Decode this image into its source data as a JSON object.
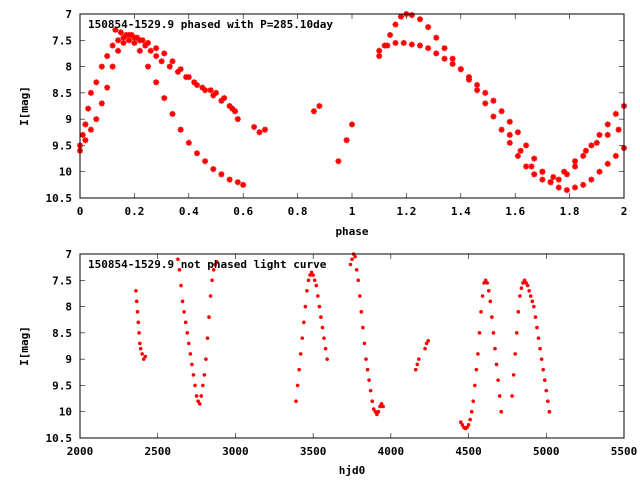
{
  "chart_data": [
    {
      "type": "scatter",
      "title": "150854-1529.9 phased with P=285.10day",
      "xlabel": "phase",
      "ylabel": "I[mag]",
      "xlim": [
        0,
        2
      ],
      "ylim": [
        10.5,
        7
      ],
      "y_inverted": true,
      "xticks": [
        0,
        0.2,
        0.4,
        0.6,
        0.8,
        1,
        1.2,
        1.4,
        1.6,
        1.8,
        2
      ],
      "yticks": [
        7,
        7.5,
        8,
        8.5,
        9,
        9.5,
        10,
        10.5
      ],
      "xtick_labels": [
        "0",
        "0.2",
        "0.4",
        "0.6",
        "0.8",
        "1",
        "1.2",
        "1.4",
        "1.6",
        "1.8",
        "2"
      ],
      "ytick_labels": [
        "7",
        "7.5",
        "8",
        "8.5",
        "9",
        "9.5",
        "10",
        "10.5"
      ],
      "marker": "star",
      "color": "#ff0000",
      "series": [
        {
          "x": [
            0.0,
            0.01,
            0.02,
            0.03,
            0.04,
            0.06,
            0.08,
            0.1,
            0.12,
            0.14,
            0.16,
            0.18,
            0.2,
            0.22,
            0.24,
            0.26,
            0.28,
            0.3,
            0.33,
            0.36,
            0.39,
            0.42,
            0.45,
            0.48,
            0.5,
            0.53,
            0.56,
            0.58,
            0.0,
            0.02,
            0.04,
            0.06,
            0.08,
            0.1,
            0.12,
            0.14,
            0.16,
            0.18,
            0.2,
            0.22,
            0.25,
            0.28,
            0.31,
            0.34,
            0.37,
            0.4,
            0.43,
            0.46,
            0.49,
            0.52,
            0.55,
            0.58,
            0.6,
            0.13,
            0.15,
            0.17,
            0.19,
            0.21,
            0.23,
            0.25,
            0.28,
            0.31,
            0.34,
            0.37,
            0.4,
            0.43,
            0.46,
            0.49,
            0.52,
            0.55,
            0.57,
            0.64,
            0.66,
            0.68,
            0.86,
            0.88,
            0.95,
            0.98,
            1.0,
            1.1,
            1.12,
            1.14,
            1.16,
            1.18,
            1.2,
            1.22,
            1.25,
            1.28,
            1.31,
            1.34,
            1.37,
            1.4,
            1.43,
            1.46,
            1.49,
            1.52,
            1.55,
            1.58,
            1.61,
            1.64,
            1.67,
            1.7,
            1.73,
            1.76,
            1.79,
            1.82,
            1.85,
            1.88,
            1.91,
            1.94,
            1.97,
            2.0,
            1.1,
            1.13,
            1.16,
            1.19,
            1.22,
            1.25,
            1.28,
            1.31,
            1.34,
            1.37,
            1.4,
            1.43,
            1.46,
            1.49,
            1.52,
            1.55,
            1.58,
            1.61,
            1.64,
            1.67,
            1.7,
            1.73,
            1.76,
            1.79,
            1.82,
            1.85,
            1.88,
            1.91,
            1.94,
            1.97,
            2.0,
            1.58,
            1.62,
            1.66,
            1.7,
            1.74,
            1.78,
            1.82,
            1.86,
            1.9,
            1.94,
            1.98
          ],
          "y": [
            9.5,
            9.3,
            9.1,
            8.8,
            8.5,
            8.3,
            8.0,
            7.8,
            7.6,
            7.5,
            7.45,
            7.4,
            7.45,
            7.5,
            7.6,
            7.7,
            7.8,
            7.9,
            8.0,
            8.1,
            8.2,
            8.3,
            8.4,
            8.45,
            8.5,
            8.6,
            8.8,
            9.0,
            9.6,
            9.4,
            9.2,
            9.0,
            8.7,
            8.4,
            8.0,
            7.7,
            7.55,
            7.5,
            7.55,
            7.7,
            8.0,
            8.3,
            8.6,
            8.9,
            9.2,
            9.45,
            9.65,
            9.8,
            9.95,
            10.05,
            10.15,
            10.2,
            10.25,
            7.3,
            7.35,
            7.4,
            7.4,
            7.45,
            7.5,
            7.55,
            7.65,
            7.75,
            7.9,
            8.05,
            8.2,
            8.35,
            8.45,
            8.55,
            8.65,
            8.75,
            8.85,
            9.15,
            9.25,
            9.2,
            8.85,
            8.75,
            9.8,
            9.4,
            9.1,
            7.8,
            7.6,
            7.4,
            7.2,
            7.05,
            7.0,
            7.02,
            7.1,
            7.25,
            7.45,
            7.65,
            7.85,
            8.05,
            8.25,
            8.45,
            8.7,
            8.95,
            9.2,
            9.45,
            9.7,
            9.9,
            10.05,
            10.15,
            10.2,
            10.15,
            10.05,
            9.9,
            9.7,
            9.5,
            9.3,
            9.1,
            8.9,
            8.75,
            7.7,
            7.6,
            7.55,
            7.55,
            7.58,
            7.6,
            7.65,
            7.75,
            7.85,
            7.95,
            8.05,
            8.2,
            8.35,
            8.5,
            8.65,
            8.85,
            9.05,
            9.25,
            9.5,
            9.75,
            10.0,
            10.2,
            10.3,
            10.35,
            10.3,
            10.25,
            10.15,
            10.0,
            9.85,
            9.7,
            9.55,
            9.3,
            9.6,
            9.9,
            10.0,
            10.1,
            10.0,
            9.8,
            9.6,
            9.45,
            9.3,
            9.2
          ]
        }
      ]
    },
    {
      "type": "scatter",
      "title": "150854-1529.9 not phased light curve",
      "xlabel": "hjd0",
      "ylabel": "I[mag]",
      "xlim": [
        2000,
        5500
      ],
      "ylim": [
        10.5,
        7
      ],
      "y_inverted": true,
      "xticks": [
        2000,
        2500,
        3000,
        3500,
        4000,
        4500,
        5000,
        5500
      ],
      "yticks": [
        7,
        7.5,
        8,
        8.5,
        9,
        9.5,
        10,
        10.5
      ],
      "xtick_labels": [
        "2000",
        "2500",
        "3000",
        "3500",
        "4000",
        "4500",
        "5000",
        "5500"
      ],
      "ytick_labels": [
        "7",
        "7.5",
        "8",
        "8.5",
        "9",
        "9.5",
        "10",
        "10.5"
      ],
      "marker": "dot",
      "color": "#ff0000",
      "series": [
        {
          "x": [
            2360,
            2365,
            2370,
            2375,
            2380,
            2385,
            2390,
            2400,
            2410,
            2420,
            2630,
            2640,
            2650,
            2660,
            2670,
            2680,
            2690,
            2700,
            2710,
            2720,
            2730,
            2740,
            2750,
            2760,
            2770,
            2780,
            2790,
            2800,
            2810,
            2820,
            2830,
            2840,
            2850,
            2860,
            2870,
            2880,
            3390,
            3400,
            3410,
            3420,
            3430,
            3440,
            3450,
            3460,
            3470,
            3480,
            3490,
            3500,
            3510,
            3520,
            3530,
            3540,
            3550,
            3560,
            3570,
            3580,
            3590,
            3740,
            3750,
            3760,
            3770,
            3780,
            3790,
            3800,
            3810,
            3820,
            3830,
            3840,
            3850,
            3860,
            3870,
            3880,
            3890,
            3900,
            3910,
            3920,
            3930,
            3940,
            3950,
            4160,
            4170,
            4180,
            4220,
            4230,
            4240,
            4450,
            4460,
            4470,
            4480,
            4490,
            4500,
            4510,
            4520,
            4530,
            4540,
            4550,
            4560,
            4570,
            4580,
            4590,
            4600,
            4610,
            4620,
            4630,
            4640,
            4650,
            4660,
            4670,
            4680,
            4690,
            4700,
            4710,
            4780,
            4790,
            4800,
            4810,
            4820,
            4830,
            4840,
            4850,
            4860,
            4870,
            4880,
            4890,
            4900,
            4910,
            4920,
            4930,
            4940,
            4950,
            4960,
            4970,
            4980,
            4990,
            5000,
            5010,
            5020
          ],
          "y": [
            7.7,
            7.9,
            8.1,
            8.3,
            8.5,
            8.7,
            8.8,
            8.9,
            9.0,
            8.95,
            7.1,
            7.3,
            7.6,
            7.9,
            8.1,
            8.3,
            8.5,
            8.7,
            8.9,
            9.1,
            9.3,
            9.5,
            9.7,
            9.8,
            9.85,
            9.7,
            9.5,
            9.3,
            9.0,
            8.6,
            8.2,
            7.8,
            7.5,
            7.3,
            7.2,
            7.15,
            9.8,
            9.5,
            9.2,
            8.9,
            8.6,
            8.3,
            8.0,
            7.7,
            7.5,
            7.4,
            7.35,
            7.4,
            7.5,
            7.6,
            7.8,
            8.0,
            8.2,
            8.4,
            8.6,
            8.8,
            9.0,
            7.2,
            7.1,
            7.0,
            7.05,
            7.3,
            7.5,
            7.8,
            8.1,
            8.4,
            8.7,
            9.0,
            9.2,
            9.4,
            9.6,
            9.8,
            9.95,
            10.0,
            10.05,
            10.0,
            9.9,
            9.85,
            9.9,
            9.2,
            9.1,
            9.0,
            8.8,
            8.7,
            8.65,
            10.2,
            10.25,
            10.3,
            10.32,
            10.3,
            10.25,
            10.15,
            10.0,
            9.8,
            9.5,
            9.2,
            8.9,
            8.5,
            8.1,
            7.8,
            7.55,
            7.5,
            7.55,
            7.7,
            7.9,
            8.2,
            8.5,
            8.8,
            9.1,
            9.4,
            9.7,
            10.0,
            9.7,
            9.3,
            8.9,
            8.5,
            8.1,
            7.8,
            7.65,
            7.55,
            7.5,
            7.55,
            7.6,
            7.7,
            7.8,
            7.9,
            8.0,
            8.2,
            8.4,
            8.6,
            8.8,
            9.0,
            9.2,
            9.4,
            9.6,
            9.8,
            10.0
          ]
        }
      ]
    }
  ]
}
